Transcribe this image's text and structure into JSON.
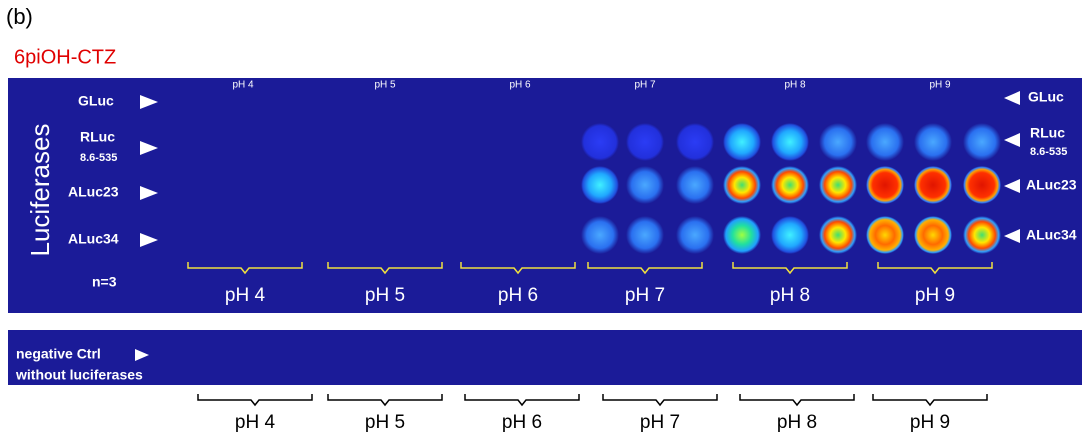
{
  "panel_label": "(b)",
  "substrate": "6piOH-CTZ",
  "side_title": "Luciferases",
  "top_labels": [
    "pH 4",
    "pH 5",
    "pH 6",
    "pH 7",
    "pH 8",
    "pH 9"
  ],
  "left_rows": [
    {
      "label": "GLuc"
    },
    {
      "label": "RLuc",
      "sub": "8.6-535"
    },
    {
      "label": "ALuc23"
    },
    {
      "label": "ALuc34"
    }
  ],
  "replicates": "n=3",
  "right_rows": [
    {
      "label": "GLuc"
    },
    {
      "label": "RLuc",
      "sub": "8.6-535"
    },
    {
      "label": "ALuc23"
    },
    {
      "label": "ALuc34"
    }
  ],
  "group_labels": [
    "pH 4",
    "pH 5",
    "pH 6",
    "pH 7",
    "pH 8",
    "pH 9"
  ],
  "control_label": [
    "negative Ctrl",
    "without luciferases"
  ],
  "control_group_labels": [
    "pH 4",
    "pH 5",
    "pH 6",
    "pH 7",
    "pH 8",
    "pH 9"
  ]
}
